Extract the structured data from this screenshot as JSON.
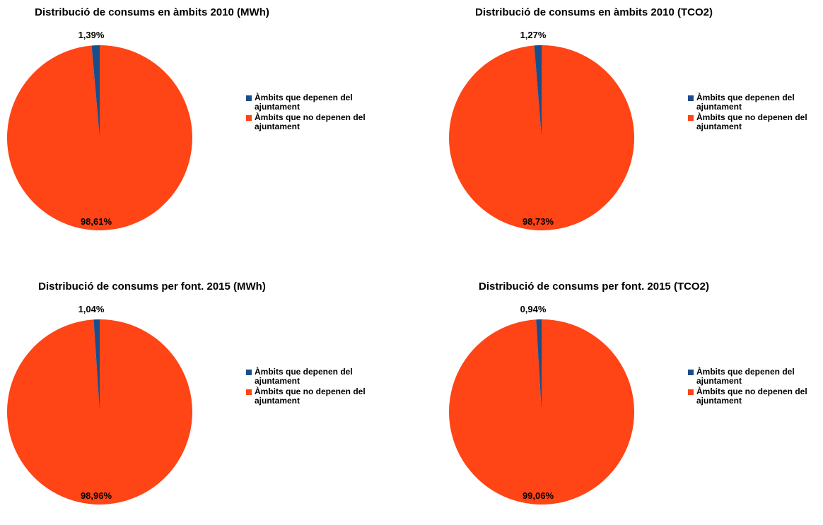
{
  "colors": {
    "depenen": "#1a4e8a",
    "no_depenen": "#ff4416"
  },
  "chart_data": [
    {
      "type": "pie",
      "title": "Distribució de consums en àmbits 2010 (MWh)",
      "categories": [
        "Àmbits que depenen del ajuntament",
        "Àmbits que no depenen del ajuntament"
      ],
      "values": [
        1.39,
        98.61
      ],
      "labels": [
        "1,39%",
        "98,61%"
      ],
      "legend": "right"
    },
    {
      "type": "pie",
      "title": "Distribució de consums en àmbits 2010 (TCO2)",
      "categories": [
        "Àmbits que depenen del ajuntament",
        "Àmbits que no depenen del ajuntament"
      ],
      "values": [
        1.27,
        98.73
      ],
      "labels": [
        "1,27%",
        "98,73%"
      ],
      "legend": "right"
    },
    {
      "type": "pie",
      "title": "Distribució de consums per font. 2015 (MWh)",
      "categories": [
        "Àmbits que depenen del ajuntament",
        "Àmbits que no depenen del ajuntament"
      ],
      "values": [
        1.04,
        98.96
      ],
      "labels": [
        "1,04%",
        "98,96%"
      ],
      "legend": "right"
    },
    {
      "type": "pie",
      "title": "Distribució de consums per font. 2015 (TCO2)",
      "categories": [
        "Àmbits que depenen del ajuntament",
        "Àmbits que no depenen del ajuntament"
      ],
      "values": [
        0.94,
        99.06
      ],
      "labels": [
        "0,94%",
        "99,06%"
      ],
      "legend": "right"
    }
  ]
}
